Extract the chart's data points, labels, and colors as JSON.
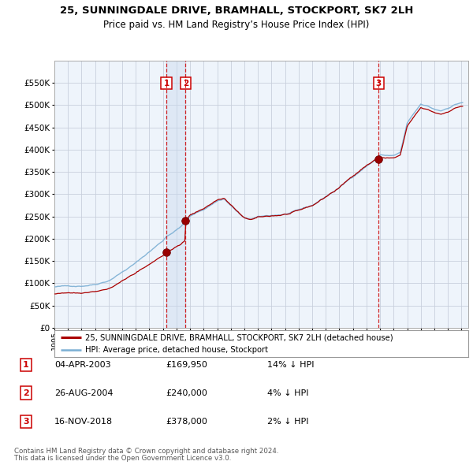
{
  "title": "25, SUNNINGDALE DRIVE, BRAMHALL, STOCKPORT, SK7 2LH",
  "subtitle": "Price paid vs. HM Land Registry’s House Price Index (HPI)",
  "sale_year_nums": [
    2003.25,
    2004.66,
    2018.88
  ],
  "sale_prices": [
    169950,
    240000,
    378000
  ],
  "sale_labels": [
    "1",
    "2",
    "3"
  ],
  "legend_line1": "25, SUNNINGDALE DRIVE, BRAMHALL, STOCKPORT, SK7 2LH (detached house)",
  "legend_line2": "HPI: Average price, detached house, Stockport",
  "table_rows": [
    [
      "1",
      "04-APR-2003",
      "£169,950",
      "14% ↓ HPI"
    ],
    [
      "2",
      "26-AUG-2004",
      "£240,000",
      "4% ↓ HPI"
    ],
    [
      "3",
      "16-NOV-2018",
      "£378,000",
      "2% ↓ HPI"
    ]
  ],
  "footnote1": "Contains HM Land Registry data © Crown copyright and database right 2024.",
  "footnote2": "This data is licensed under the Open Government Licence v3.0.",
  "ylim": [
    0,
    600000
  ],
  "yticks": [
    0,
    50000,
    100000,
    150000,
    200000,
    250000,
    300000,
    350000,
    400000,
    450000,
    500000,
    550000
  ],
  "hpi_color": "#7bafd4",
  "sale_line_color": "#aa0000",
  "sale_dot_color": "#880000",
  "vline_color": "#cc0000",
  "chart_bg": "#eef4fb",
  "band_color": "#c8d8ee",
  "background_color": "#ffffff",
  "grid_color": "#c8d0dc"
}
